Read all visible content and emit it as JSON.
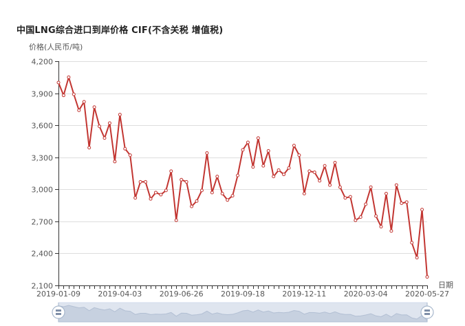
{
  "chart_data": {
    "type": "line",
    "title": "中国LNG综合进口到岸价格  CIF(不含关税  增值税)",
    "ylabel": "价格(人民币/吨)",
    "xlabel": "日期",
    "ylim": [
      2100,
      4200
    ],
    "yticks": [
      2100,
      2400,
      2700,
      3000,
      3300,
      3600,
      3900,
      4200
    ],
    "ytick_labels": [
      "2,100",
      "2,400",
      "2,700",
      "3,000",
      "3,300",
      "3,600",
      "3,900",
      "4,200"
    ],
    "xtick_labels": [
      "2019-01-09",
      "2019-04-03",
      "2019-06-26",
      "2019-09-18",
      "2019-12-11",
      "2020-03-04",
      "2020-05-27"
    ],
    "grid": true,
    "colors": {
      "line": "#c23531",
      "grid": "#dddddd",
      "axis": "#333333",
      "zoom_fill": "#dfe5ef",
      "zoom_handle": "#a7b7cc"
    },
    "series": [
      {
        "values": [
          4000,
          3880,
          4050,
          3890,
          3740,
          3820,
          3390,
          3770,
          3590,
          3480,
          3620,
          3260,
          3700,
          3380,
          3320,
          2920,
          3070,
          3070,
          2910,
          2970,
          2950,
          2990,
          3170,
          2710,
          3090,
          3070,
          2840,
          2890,
          2990,
          3340,
          2970,
          3120,
          2960,
          2900,
          2940,
          3130,
          3370,
          3440,
          3210,
          3480,
          3220,
          3360,
          3120,
          3180,
          3140,
          3200,
          3410,
          3320,
          2960,
          3170,
          3160,
          3080,
          3220,
          3040,
          3250,
          3020,
          2920,
          2930,
          2710,
          2740,
          2860,
          3020,
          2750,
          2650,
          2960,
          2610,
          3040,
          2870,
          2880,
          2500,
          2360,
          2810,
          2180
        ]
      }
    ]
  },
  "data_zoom": {
    "start_handle_label": "〓",
    "end_handle_label": "〓"
  }
}
